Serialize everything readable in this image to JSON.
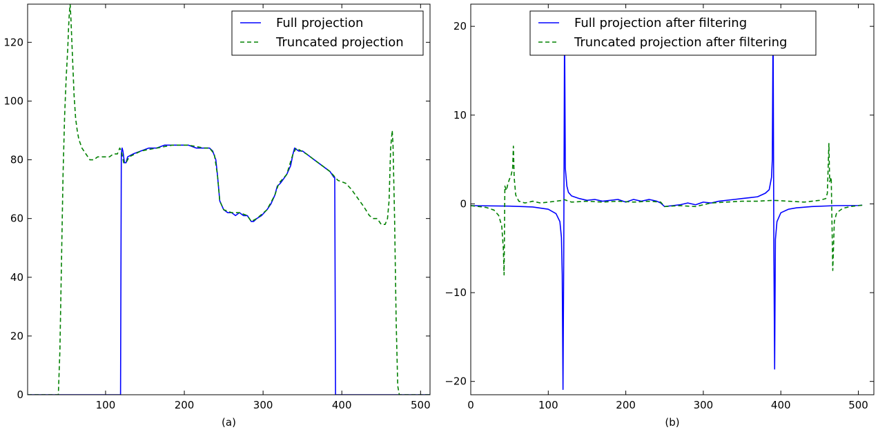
{
  "chart_data": [
    {
      "type": "line",
      "xlabel": "(a)",
      "xlim": [
        1,
        512
      ],
      "ylim": [
        0,
        133
      ],
      "xticks": [
        100,
        200,
        300,
        400,
        500
      ],
      "yticks": [
        0,
        20,
        40,
        60,
        80,
        100,
        120
      ],
      "legend_position": "top-right",
      "series": [
        {
          "name": "Full projection",
          "color": "#0000ff",
          "style": "solid",
          "points": [
            [
              1,
              0
            ],
            [
              118,
              0
            ],
            [
              119,
              0
            ],
            [
              120,
              82
            ],
            [
              121,
              84
            ],
            [
              122,
              83
            ],
            [
              124,
              79
            ],
            [
              126,
              79
            ],
            [
              128,
              81
            ],
            [
              135,
              82
            ],
            [
              145,
              83
            ],
            [
              155,
              84
            ],
            [
              165,
              84
            ],
            [
              175,
              85
            ],
            [
              185,
              85
            ],
            [
              195,
              85
            ],
            [
              205,
              85
            ],
            [
              215,
              84
            ],
            [
              225,
              84
            ],
            [
              232,
              84
            ],
            [
              236,
              83
            ],
            [
              240,
              80
            ],
            [
              242,
              75
            ],
            [
              245,
              66
            ],
            [
              250,
              63
            ],
            [
              255,
              62
            ],
            [
              260,
              62
            ],
            [
              265,
              61
            ],
            [
              270,
              62
            ],
            [
              275,
              61
            ],
            [
              280,
              61
            ],
            [
              285,
              59
            ],
            [
              288,
              59
            ],
            [
              292,
              60
            ],
            [
              298,
              61
            ],
            [
              305,
              63
            ],
            [
              310,
              65
            ],
            [
              315,
              68
            ],
            [
              318,
              71
            ],
            [
              322,
              72
            ],
            [
              330,
              75
            ],
            [
              335,
              78
            ],
            [
              338,
              82
            ],
            [
              340,
              84
            ],
            [
              345,
              83
            ],
            [
              350,
              83
            ],
            [
              355,
              82
            ],
            [
              360,
              81
            ],
            [
              365,
              80
            ],
            [
              370,
              79
            ],
            [
              375,
              78
            ],
            [
              380,
              77
            ],
            [
              385,
              76
            ],
            [
              390,
              74
            ],
            [
              391,
              74
            ],
            [
              392,
              0
            ],
            [
              512,
              0
            ]
          ]
        },
        {
          "name": "Truncated projection",
          "color": "#008000",
          "style": "dashed",
          "points": [
            [
              1,
              0
            ],
            [
              38,
              0
            ],
            [
              40,
              0
            ],
            [
              42,
              15
            ],
            [
              44,
              45
            ],
            [
              46,
              75
            ],
            [
              48,
              95
            ],
            [
              50,
              108
            ],
            [
              52,
              118
            ],
            [
              53,
              125
            ],
            [
              54,
              130
            ],
            [
              55,
              133
            ],
            [
              56,
              128
            ],
            [
              58,
              115
            ],
            [
              60,
              102
            ],
            [
              62,
              94
            ],
            [
              64,
              90
            ],
            [
              66,
              87
            ],
            [
              70,
              84
            ],
            [
              75,
              82
            ],
            [
              80,
              80
            ],
            [
              85,
              80
            ],
            [
              90,
              81
            ],
            [
              95,
              81
            ],
            [
              100,
              81
            ],
            [
              105,
              81
            ],
            [
              110,
              82
            ],
            [
              115,
              82
            ],
            [
              118,
              84
            ],
            [
              120,
              83
            ],
            [
              123,
              79
            ],
            [
              126,
              79
            ],
            [
              130,
              81
            ],
            [
              145,
              83
            ],
            [
              165,
              84
            ],
            [
              185,
              85
            ],
            [
              205,
              85
            ],
            [
              225,
              84
            ],
            [
              232,
              84
            ],
            [
              238,
              82
            ],
            [
              242,
              75
            ],
            [
              245,
              66
            ],
            [
              250,
              63
            ],
            [
              260,
              62
            ],
            [
              270,
              62
            ],
            [
              280,
              61
            ],
            [
              285,
              59
            ],
            [
              292,
              60
            ],
            [
              305,
              63
            ],
            [
              315,
              68
            ],
            [
              320,
              72
            ],
            [
              330,
              75
            ],
            [
              338,
              82
            ],
            [
              342,
              84
            ],
            [
              355,
              82
            ],
            [
              370,
              79
            ],
            [
              385,
              76
            ],
            [
              395,
              73
            ],
            [
              405,
              72
            ],
            [
              412,
              70
            ],
            [
              420,
              67
            ],
            [
              428,
              64
            ],
            [
              435,
              61
            ],
            [
              440,
              60
            ],
            [
              445,
              60
            ],
            [
              450,
              58
            ],
            [
              455,
              58
            ],
            [
              458,
              60
            ],
            [
              460,
              66
            ],
            [
              462,
              84
            ],
            [
              464,
              90
            ],
            [
              465,
              85
            ],
            [
              467,
              60
            ],
            [
              469,
              25
            ],
            [
              471,
              3
            ],
            [
              473,
              0
            ],
            [
              512,
              0
            ]
          ]
        }
      ]
    },
    {
      "type": "line",
      "xlabel": "(b)",
      "xlim": [
        0,
        520
      ],
      "ylim": [
        -21.5,
        22.5
      ],
      "xticks": [
        0,
        100,
        200,
        300,
        400,
        500
      ],
      "yticks": [
        -20,
        -10,
        0,
        10,
        20
      ],
      "legend_position": "top-center",
      "series": [
        {
          "name": "Full projection after filtering",
          "color": "#0000ff",
          "style": "solid",
          "points": [
            [
              0,
              -0.2
            ],
            [
              50,
              -0.25
            ],
            [
              80,
              -0.35
            ],
            [
              100,
              -0.6
            ],
            [
              110,
              -1.1
            ],
            [
              115,
              -2
            ],
            [
              117,
              -3.8
            ],
            [
              118,
              -8
            ],
            [
              119,
              -20.9
            ],
            [
              120,
              -5
            ],
            [
              121,
              20.5
            ],
            [
              122,
              4
            ],
            [
              124,
              2
            ],
            [
              126,
              1.3
            ],
            [
              130,
              0.9
            ],
            [
              140,
              0.6
            ],
            [
              150,
              0.4
            ],
            [
              160,
              0.5
            ],
            [
              170,
              0.3
            ],
            [
              180,
              0.4
            ],
            [
              190,
              0.5
            ],
            [
              200,
              0.2
            ],
            [
              210,
              0.5
            ],
            [
              220,
              0.3
            ],
            [
              230,
              0.5
            ],
            [
              240,
              0.3
            ],
            [
              245,
              0.1
            ],
            [
              250,
              -0.3
            ],
            [
              260,
              -0.2
            ],
            [
              270,
              -0.1
            ],
            [
              280,
              0.1
            ],
            [
              290,
              -0.1
            ],
            [
              300,
              0.2
            ],
            [
              310,
              0.1
            ],
            [
              320,
              0.3
            ],
            [
              330,
              0.4
            ],
            [
              340,
              0.5
            ],
            [
              350,
              0.6
            ],
            [
              360,
              0.7
            ],
            [
              370,
              0.8
            ],
            [
              380,
              1.2
            ],
            [
              385,
              1.6
            ],
            [
              388,
              3
            ],
            [
              389,
              5
            ],
            [
              390,
              20.5
            ],
            [
              391,
              -5
            ],
            [
              392,
              -18.6
            ],
            [
              393,
              -4
            ],
            [
              395,
              -2
            ],
            [
              400,
              -1
            ],
            [
              410,
              -0.6
            ],
            [
              420,
              -0.45
            ],
            [
              440,
              -0.3
            ],
            [
              470,
              -0.2
            ],
            [
              500,
              -0.18
            ],
            [
              505,
              -0.15
            ]
          ]
        },
        {
          "name": "Truncated projection after filtering",
          "color": "#008000",
          "style": "dashed",
          "points": [
            [
              0,
              -0.2
            ],
            [
              20,
              -0.4
            ],
            [
              30,
              -0.7
            ],
            [
              36,
              -1.3
            ],
            [
              40,
              -2.5
            ],
            [
              42,
              -5
            ],
            [
              43,
              -8
            ],
            [
              44,
              2
            ],
            [
              46,
              1.5
            ],
            [
              48,
              2.3
            ],
            [
              50,
              2.8
            ],
            [
              52,
              3.2
            ],
            [
              54,
              4
            ],
            [
              55,
              6.5
            ],
            [
              56,
              3
            ],
            [
              58,
              1
            ],
            [
              62,
              0.3
            ],
            [
              70,
              0.1
            ],
            [
              80,
              0.3
            ],
            [
              90,
              0.1
            ],
            [
              100,
              0.2
            ],
            [
              110,
              0.3
            ],
            [
              118,
              0.4
            ],
            [
              120,
              0.5
            ],
            [
              130,
              0.2
            ],
            [
              150,
              0.3
            ],
            [
              170,
              0.2
            ],
            [
              190,
              0.3
            ],
            [
              210,
              0.2
            ],
            [
              230,
              0.3
            ],
            [
              245,
              0.2
            ],
            [
              250,
              -0.3
            ],
            [
              270,
              -0.2
            ],
            [
              290,
              -0.3
            ],
            [
              310,
              0.1
            ],
            [
              330,
              0.2
            ],
            [
              350,
              0.3
            ],
            [
              370,
              0.3
            ],
            [
              390,
              0.4
            ],
            [
              410,
              0.3
            ],
            [
              430,
              0.2
            ],
            [
              450,
              0.4
            ],
            [
              458,
              0.6
            ],
            [
              460,
              1.2
            ],
            [
              462,
              6.8
            ],
            [
              463,
              2.5
            ],
            [
              465,
              3
            ],
            [
              467,
              -7.5
            ],
            [
              469,
              -2
            ],
            [
              472,
              -1
            ],
            [
              480,
              -0.5
            ],
            [
              490,
              -0.3
            ],
            [
              500,
              -0.2
            ],
            [
              505,
              -0.15
            ]
          ]
        }
      ]
    }
  ]
}
